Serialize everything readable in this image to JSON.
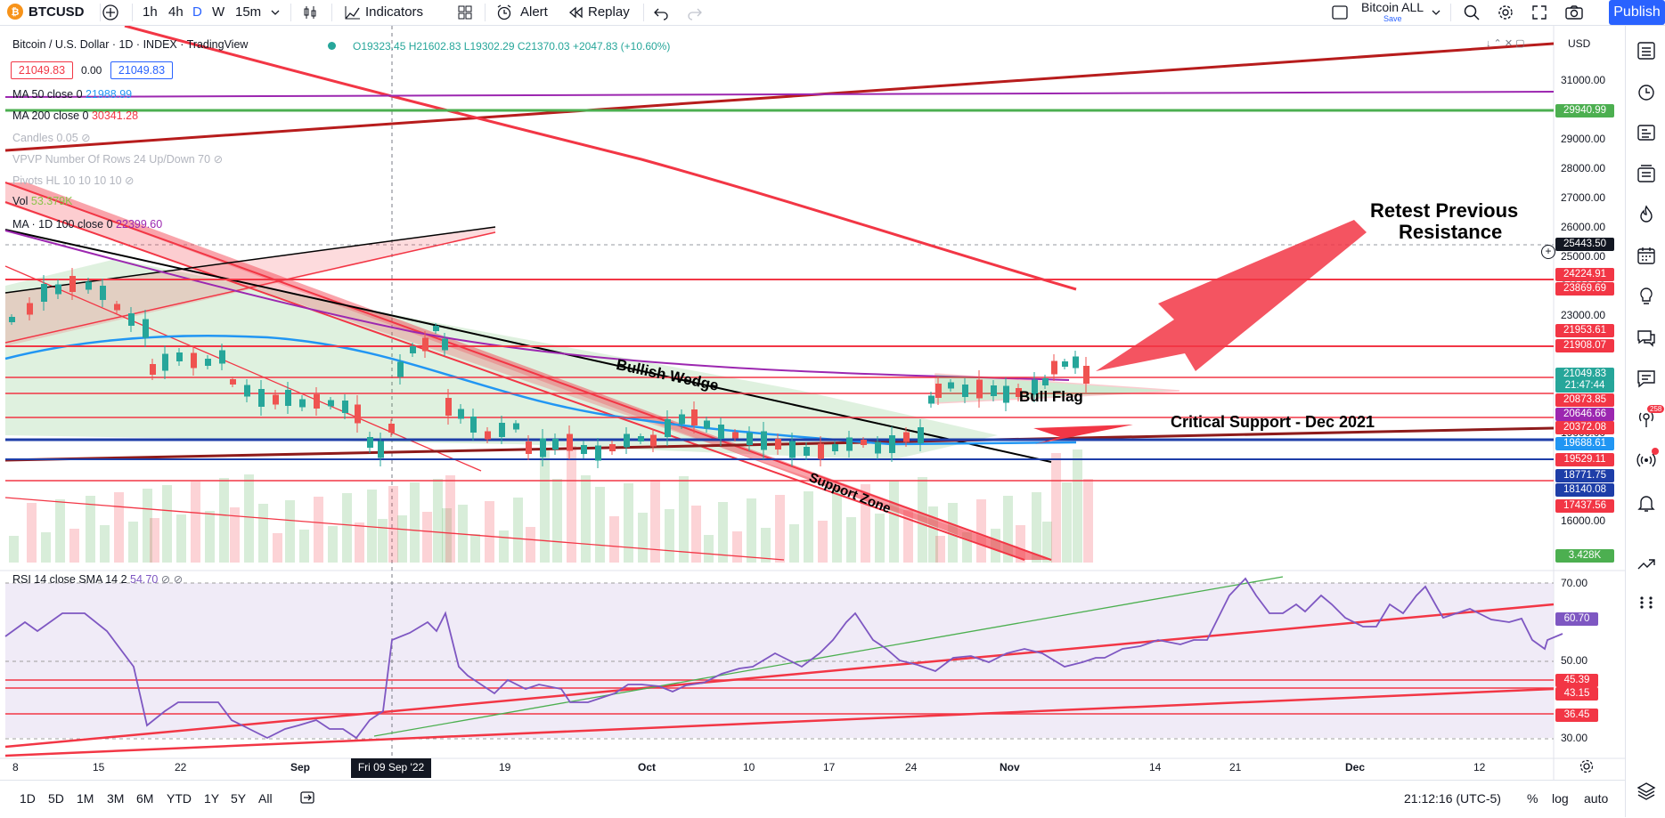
{
  "toolbar": {
    "symbol": "BTCUSD",
    "intervals": [
      "1h",
      "4h",
      "D",
      "W",
      "15m"
    ],
    "active_interval": "D",
    "indicators_label": "Indicators",
    "alert_label": "Alert",
    "replay_label": "Replay",
    "layout_name": "Bitcoin ALL",
    "layout_status": "Save",
    "publish_label": "Publish"
  },
  "header": {
    "title": "Bitcoin / U.S. Dollar · 1D · INDEX · TradingView",
    "ohlc": {
      "open": "O19323.45",
      "high": "H21602.83",
      "low": "L19302.29",
      "close": "C21370.03",
      "change": "+2047.83 (+10.60%)"
    },
    "bid": "21049.83",
    "spread": "0.00",
    "ask": "21049.83",
    "currency": "USD"
  },
  "legend": [
    {
      "label": "MA 50 close 0",
      "value": "21988.99",
      "color": "#2196f3"
    },
    {
      "label": "MA 200 close 0",
      "value": "30341.28",
      "color": "#f23645"
    },
    {
      "label": "Candles 0.05",
      "value": "",
      "color": "#787b86"
    },
    {
      "label": "VPVP Number Of Rows 24 Up/Down 70",
      "value": "",
      "color": "#787b86"
    },
    {
      "label": "Pivots HL 10 10 10 10",
      "value": "",
      "color": "#787b86"
    },
    {
      "label": "Vol",
      "value": "53.379K",
      "color": "#26a69a"
    },
    {
      "label": "MA · 1D 100 close 0",
      "value": "22399.60",
      "color": "#9c27b0"
    }
  ],
  "rsi_legend": {
    "label": "RSI 14 close SMA 14 2",
    "value": "54.70"
  },
  "price_axis": [
    "31000.00",
    "30000.00",
    "29000.00",
    "28000.00",
    "27000.00",
    "26000.00",
    "25000.00",
    "24000.00",
    "23000.00",
    "22000.00",
    "21000.00",
    "20000.00",
    "19000.00",
    "18000.00",
    "17000.00",
    "16000.00"
  ],
  "price_tags": [
    {
      "value": "29940.99",
      "color": "#4caf50"
    },
    {
      "value": "25443.50",
      "color": "#131722"
    },
    {
      "value": "24224.91",
      "color": "#f23645"
    },
    {
      "value": "23869.69",
      "color": "#f23645"
    },
    {
      "value": "21953.61",
      "color": "#f23645"
    },
    {
      "value": "21908.07",
      "color": "#f23645"
    },
    {
      "value": "21049.83",
      "color": "#26a69a"
    },
    {
      "value": "21:47:44",
      "color": "#26a69a"
    },
    {
      "value": "20873.85",
      "color": "#f23645"
    },
    {
      "value": "20646.66",
      "color": "#9c27b0"
    },
    {
      "value": "20372.08",
      "color": "#f23645"
    },
    {
      "value": "19688.61",
      "color": "#2196f3"
    },
    {
      "value": "19529.11",
      "color": "#f23645"
    },
    {
      "value": "18771.75",
      "color": "#1e3ea8"
    },
    {
      "value": "18140.08",
      "color": "#1e3ea8"
    },
    {
      "value": "17437.56",
      "color": "#f23645"
    },
    {
      "value": "3.428K",
      "color": "#4caf50"
    }
  ],
  "rsi_axis": [
    "70.00",
    "50.00",
    "30.00"
  ],
  "rsi_tags": [
    {
      "value": "60.70",
      "color": "#7e57c2"
    },
    {
      "value": "45.39",
      "color": "#f23645"
    },
    {
      "value": "43.15",
      "color": "#f23645"
    },
    {
      "value": "36.45",
      "color": "#f23645"
    }
  ],
  "time_axis": [
    "8",
    "15",
    "22",
    "Sep",
    "19",
    "Oct",
    "10",
    "17",
    "24",
    "Nov",
    "14",
    "21",
    "Dec",
    "12"
  ],
  "crosshair_date": "Fri 09 Sep '22",
  "annotations": {
    "retest": "Retest Previous",
    "retest2": "Resistance",
    "bullish_wedge": "Bullish Wedge",
    "bull_flag": "Bull Flag",
    "critical_support": "Critical Support - Dec 2021",
    "support_zone": "Support Zone"
  },
  "bottom": {
    "ranges": [
      "1D",
      "5D",
      "1M",
      "3M",
      "6M",
      "YTD",
      "1Y",
      "5Y",
      "All"
    ],
    "clock": "21:12:16 (UTC-5)",
    "percent": "%",
    "log": "log",
    "auto": "auto"
  },
  "notification_badge": "258"
}
